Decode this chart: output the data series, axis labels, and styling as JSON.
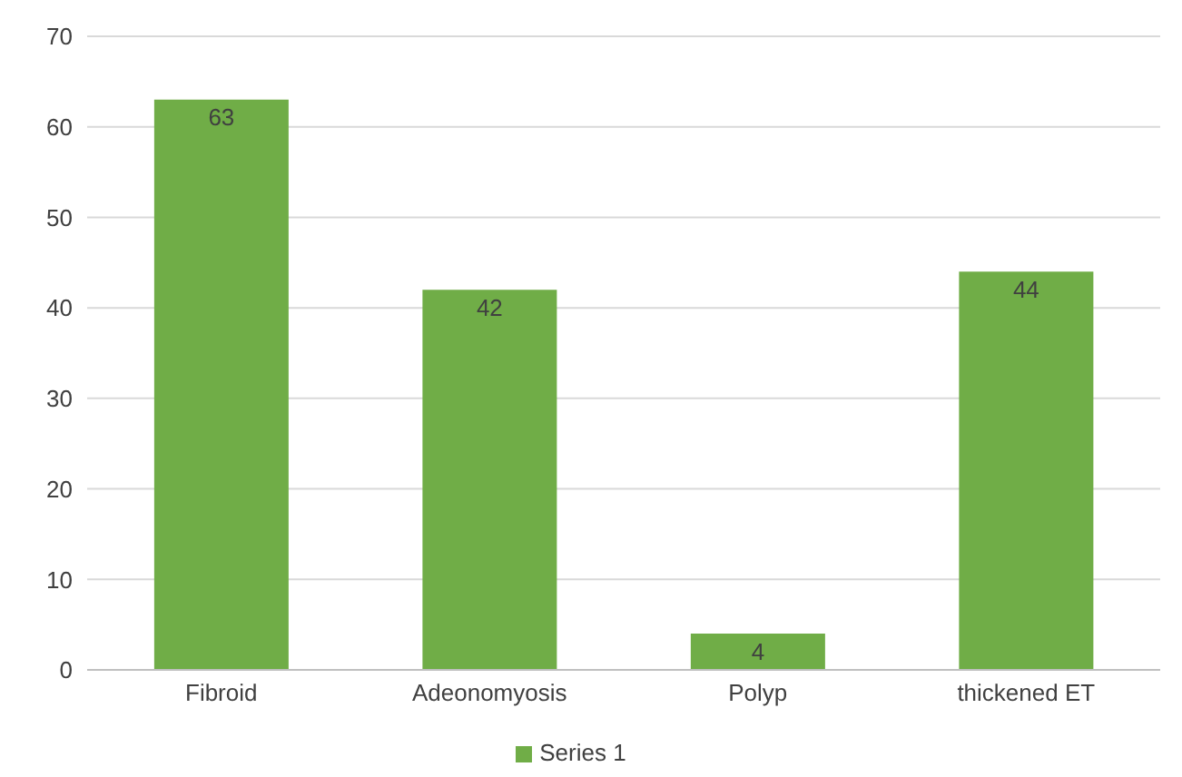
{
  "chart_data": {
    "type": "bar",
    "categories": [
      "Fibroid",
      "Adeonomyosis",
      "Polyp",
      "thickened ET"
    ],
    "series": [
      {
        "name": "Series 1",
        "color": "#70ad47",
        "values": [
          63,
          42,
          4,
          44
        ]
      }
    ],
    "ylim": [
      0,
      70
    ],
    "yticks": [
      0,
      10,
      20,
      30,
      40,
      50,
      60,
      70
    ],
    "grid": "y",
    "legend": "bottom",
    "data_labels": true
  }
}
